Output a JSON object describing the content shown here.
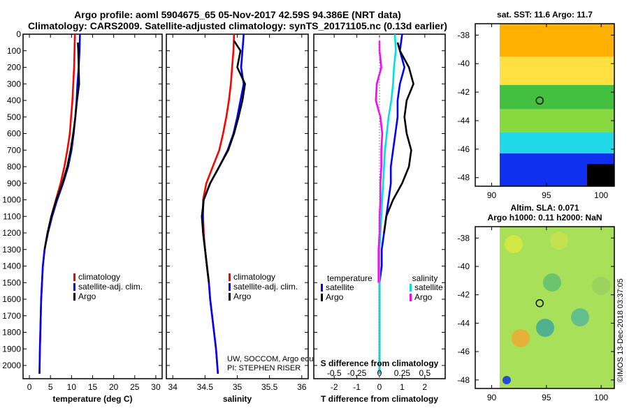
{
  "header": {
    "line1": "Argo profile: aoml 5904675_65 05-Nov-2017 42.59S 94.386E (NRT data)",
    "line2": "Climatology: CARS2009. Satellite-adjusted climatology: synTS_20171105.nc (0.13d earlier)"
  },
  "colors": {
    "climatology": "#ff0000",
    "satellite": "#0000ff",
    "argo": "#000000",
    "sat_salinity": "#00e0e0",
    "argo_salinity": "#ff00ff"
  },
  "depth_axis": {
    "ticks": [
      "0",
      "100",
      "200",
      "300",
      "400",
      "500",
      "600",
      "700",
      "800",
      "900",
      "1000",
      "1100",
      "1200",
      "1300",
      "1400",
      "1500",
      "1600",
      "1700",
      "1800",
      "1900",
      "2000"
    ],
    "range": [
      0,
      2080
    ]
  },
  "chart_data": [
    {
      "type": "line",
      "id": "temperature",
      "xlabel": "temperature (deg C)",
      "ylabel": "depth",
      "xlim": [
        -1.5,
        31.5
      ],
      "xticks": [
        "0",
        "5",
        "10",
        "15",
        "20",
        "25",
        "30"
      ],
      "legend": [
        "climatology",
        "satellite-adj. clim.",
        "Argo"
      ],
      "series": [
        {
          "name": "climatology",
          "color": "#ff0000",
          "x": [
            10.8,
            10.7,
            10.6,
            10.4,
            10.2,
            9.9,
            9.6,
            9.0,
            8.3,
            7.4,
            6.3,
            5.2,
            4.3,
            3.6,
            3.2,
            3.0,
            2.8,
            2.7,
            2.6,
            2.5,
            2.4
          ],
          "depth": [
            0,
            100,
            200,
            300,
            400,
            500,
            600,
            700,
            800,
            900,
            1000,
            1100,
            1200,
            1300,
            1400,
            1500,
            1600,
            1700,
            1800,
            1900,
            2050
          ]
        },
        {
          "name": "satellite-adj. clim.",
          "color": "#0000ff",
          "x": [
            12.0,
            11.9,
            11.7,
            11.4,
            11.2,
            10.9,
            10.5,
            10.0,
            9.2,
            8.0,
            6.6,
            5.4,
            4.4,
            3.6,
            3.2,
            3.0,
            2.8,
            2.7,
            2.6,
            2.5,
            2.4
          ],
          "depth": [
            0,
            100,
            200,
            300,
            400,
            500,
            600,
            700,
            800,
            900,
            1000,
            1100,
            1200,
            1300,
            1400,
            1500,
            1600,
            1700,
            1800,
            1900,
            2050
          ]
        },
        {
          "name": "Argo",
          "color": "#000000",
          "x": [
            11.5,
            11.6,
            11.7,
            11.8,
            11.3,
            10.9,
            10.4,
            9.8,
            9.0,
            7.8,
            6.4,
            5.2,
            4.3,
            3.6
          ],
          "depth": [
            50,
            100,
            200,
            300,
            400,
            500,
            600,
            700,
            800,
            900,
            1000,
            1100,
            1200,
            1300
          ]
        }
      ]
    },
    {
      "type": "line",
      "id": "salinity",
      "xlabel": "salinity",
      "ylabel": "depth",
      "xlim": [
        33.9,
        36.1
      ],
      "xticks": [
        "34",
        "34.5",
        "35",
        "35.5",
        "36"
      ],
      "legend": [
        "climatology",
        "satellite-adj. clim.",
        "Argo"
      ],
      "annotations": [
        "UW, SOCCOM, Argo equivalent",
        "PI: STEPHEN RISER"
      ],
      "series": [
        {
          "name": "climatology",
          "color": "#ff0000",
          "x": [
            34.95,
            34.94,
            34.92,
            34.9,
            34.87,
            34.83,
            34.78,
            34.72,
            34.62,
            34.52,
            34.47,
            34.47,
            34.48,
            34.5,
            34.53,
            34.56,
            34.58,
            34.61,
            34.64,
            34.67,
            34.7
          ],
          "depth": [
            0,
            100,
            200,
            300,
            400,
            500,
            600,
            700,
            800,
            900,
            1000,
            1100,
            1200,
            1300,
            1400,
            1500,
            1600,
            1700,
            1800,
            1900,
            2050
          ]
        },
        {
          "name": "satellite-adj. clim.",
          "color": "#0000ff",
          "x": [
            35.1,
            35.08,
            35.06,
            35.1,
            35.05,
            35.0,
            34.94,
            34.85,
            34.72,
            34.58,
            34.48,
            34.46,
            34.47,
            34.5,
            34.53,
            34.56,
            34.58,
            34.61,
            34.64,
            34.67,
            34.7
          ],
          "depth": [
            0,
            100,
            200,
            300,
            400,
            500,
            600,
            700,
            800,
            900,
            1000,
            1100,
            1200,
            1300,
            1400,
            1500,
            1600,
            1700,
            1800,
            1900,
            2050
          ]
        },
        {
          "name": "Argo",
          "color": "#000000",
          "x": [
            34.95,
            35.05,
            35.0,
            35.12,
            35.08,
            35.02,
            34.95,
            34.86,
            34.72,
            34.58,
            34.48,
            34.45,
            34.47,
            34.5,
            34.53,
            34.56
          ],
          "depth": [
            40,
            100,
            200,
            300,
            400,
            500,
            600,
            700,
            800,
            900,
            1000,
            1100,
            1200,
            1300,
            1400,
            1500
          ]
        }
      ]
    },
    {
      "type": "line",
      "id": "differences",
      "xlabel": "T difference from climatology",
      "xlabel_top": "S difference from climatology",
      "xlim": [
        -2.9,
        2.9
      ],
      "xticks": [
        "-2",
        "-1",
        "0",
        "1",
        "2"
      ],
      "xticks_top": [
        "-0.5",
        "-0.25",
        "0",
        "0.25",
        "0.5"
      ],
      "legend_left_title": "temperature",
      "legend_right_title": "salinity",
      "legend": [
        "satellite",
        "Argo",
        "satellite",
        "Argo"
      ],
      "series": [
        {
          "name": "T satellite",
          "color": "#0000ff",
          "x": [
            1.0,
            0.9,
            1.1,
            0.9,
            0.8,
            0.8,
            0.7,
            0.6,
            0.5,
            0.5,
            0.4,
            0.3,
            0.2,
            0.1,
            0.1,
            0.0,
            0.0,
            0.0,
            0.0,
            0.0,
            0.0
          ],
          "depth": [
            0,
            100,
            200,
            300,
            400,
            500,
            600,
            700,
            800,
            900,
            1000,
            1100,
            1200,
            1300,
            1400,
            1500,
            1600,
            1700,
            1800,
            1900,
            2050
          ]
        },
        {
          "name": "T Argo",
          "color": "#000000",
          "x": [
            0.8,
            0.9,
            1.3,
            1.5,
            1.2,
            1.1,
            1.2,
            1.4,
            1.3,
            1.0,
            0.6,
            0.3,
            0.2
          ],
          "depth": [
            50,
            100,
            200,
            300,
            400,
            500,
            600,
            700,
            800,
            900,
            1000,
            1100,
            1200
          ]
        },
        {
          "name": "S satellite",
          "color": "#00e0e0",
          "x": [
            0.17,
            0.18,
            0.16,
            0.15,
            0.13,
            0.1,
            0.08,
            0.06,
            0.05,
            0.04,
            0.03,
            0.02,
            0.01,
            0.0,
            0.0,
            0.0,
            0.0,
            0.0,
            0.0,
            0.0,
            0.0
          ],
          "depth": [
            0,
            100,
            200,
            300,
            400,
            500,
            600,
            700,
            800,
            900,
            1000,
            1100,
            1200,
            1300,
            1400,
            1500,
            1600,
            1700,
            1800,
            1900,
            2050
          ]
        },
        {
          "name": "S Argo",
          "color": "#ff00ff",
          "x": [
            0.0,
            0.0,
            0.02,
            -0.03,
            -0.04,
            0.01,
            0.03,
            0.02,
            0.02,
            0.01,
            0.01,
            0.0,
            0.0,
            -0.01,
            -0.01,
            -0.01
          ],
          "depth": [
            40,
            100,
            200,
            300,
            400,
            500,
            600,
            700,
            800,
            900,
            1000,
            1100,
            1200,
            1300,
            1400,
            1500
          ]
        }
      ]
    },
    {
      "type": "heatmap",
      "id": "sst-map",
      "title": "sat. SST: 11.6 Argo: 11.7",
      "xticks": [
        "90",
        "95",
        "100"
      ],
      "yticks": [
        "-38",
        "-40",
        "-42",
        "-44",
        "-46",
        "-48"
      ],
      "xlim": [
        88.5,
        101.2
      ],
      "ylim": [
        -48.6,
        -37.2
      ],
      "marker": [
        94.386,
        -42.59
      ],
      "bands": [
        {
          "lat": [
            -37.2,
            -39.5
          ],
          "color": "#ffb000"
        },
        {
          "lat": [
            -39.5,
            -41.5
          ],
          "color": "#ffe040"
        },
        {
          "lat": [
            -41.5,
            -43.2
          ],
          "color": "#44c040"
        },
        {
          "lat": [
            -43.2,
            -44.8
          ],
          "color": "#88d840"
        },
        {
          "lat": [
            -44.8,
            -46.3
          ],
          "color": "#20d8e8"
        },
        {
          "lat": [
            -46.3,
            -48.6
          ],
          "color": "#1030f0"
        }
      ]
    },
    {
      "type": "heatmap",
      "id": "sla-map",
      "title_line1": "Altim. SLA: 0.071",
      "title_line2": "Argo h1000: 0.11 h2000: NaN",
      "xticks": [
        "90",
        "95",
        "100"
      ],
      "yticks": [
        "-38",
        "-40",
        "-42",
        "-44",
        "-46",
        "-48"
      ],
      "xlim": [
        88.5,
        101.2
      ],
      "ylim": [
        -48.6,
        -37.2
      ],
      "marker": [
        94.386,
        -42.59
      ]
    }
  ],
  "footer": {
    "credit": "©IMOS 13-Dec-2018 03:37:05"
  }
}
